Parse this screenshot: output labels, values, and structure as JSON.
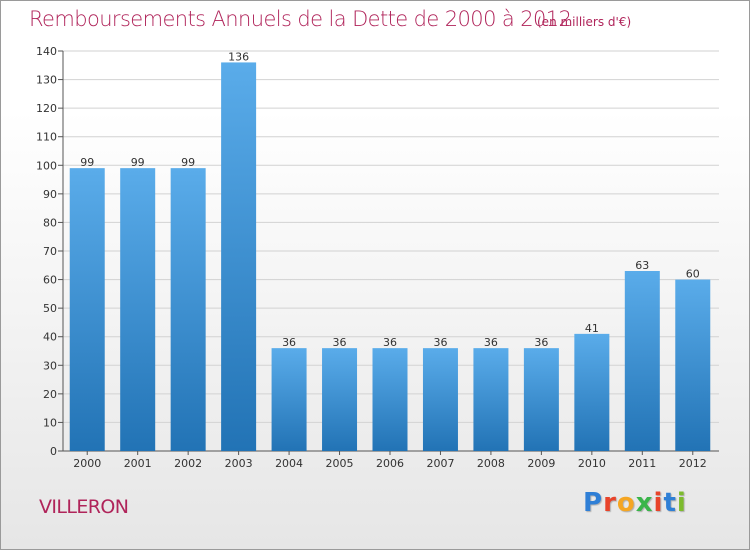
{
  "title": "Remboursements Annuels de la Dette de 2000 à 2012",
  "subtitle": "(en milliers d'€)",
  "commune": "VILLERON",
  "logo": {
    "letters": [
      "P",
      "r",
      "o",
      "x",
      "i",
      "t",
      "i"
    ],
    "colors": [
      "#2f7fd6",
      "#e8432a",
      "#f5a623",
      "#3ab54a",
      "#e8432a",
      "#2f7fd6",
      "#7dbb2d"
    ]
  },
  "colors": {
    "bar_light": "#5aacea",
    "bar_dark": "#2273b5",
    "title": "#b0245a"
  },
  "chart_data": {
    "type": "bar",
    "categories": [
      "2000",
      "2001",
      "2002",
      "2003",
      "2004",
      "2005",
      "2006",
      "2007",
      "2008",
      "2009",
      "2010",
      "2011",
      "2012"
    ],
    "values": [
      99,
      99,
      99,
      136,
      36,
      36,
      36,
      36,
      36,
      36,
      41,
      63,
      60
    ],
    "data_labels": [
      "99",
      "99",
      "99",
      "136",
      "36",
      "36",
      "36",
      "36",
      "36",
      "36",
      "41",
      "63",
      "60"
    ],
    "y_ticks": [
      "0",
      "10",
      "20",
      "30",
      "40",
      "50",
      "60",
      "70",
      "80",
      "90",
      "100",
      "110",
      "120",
      "130",
      "140"
    ],
    "ylim": [
      0,
      140
    ],
    "grid": true
  }
}
